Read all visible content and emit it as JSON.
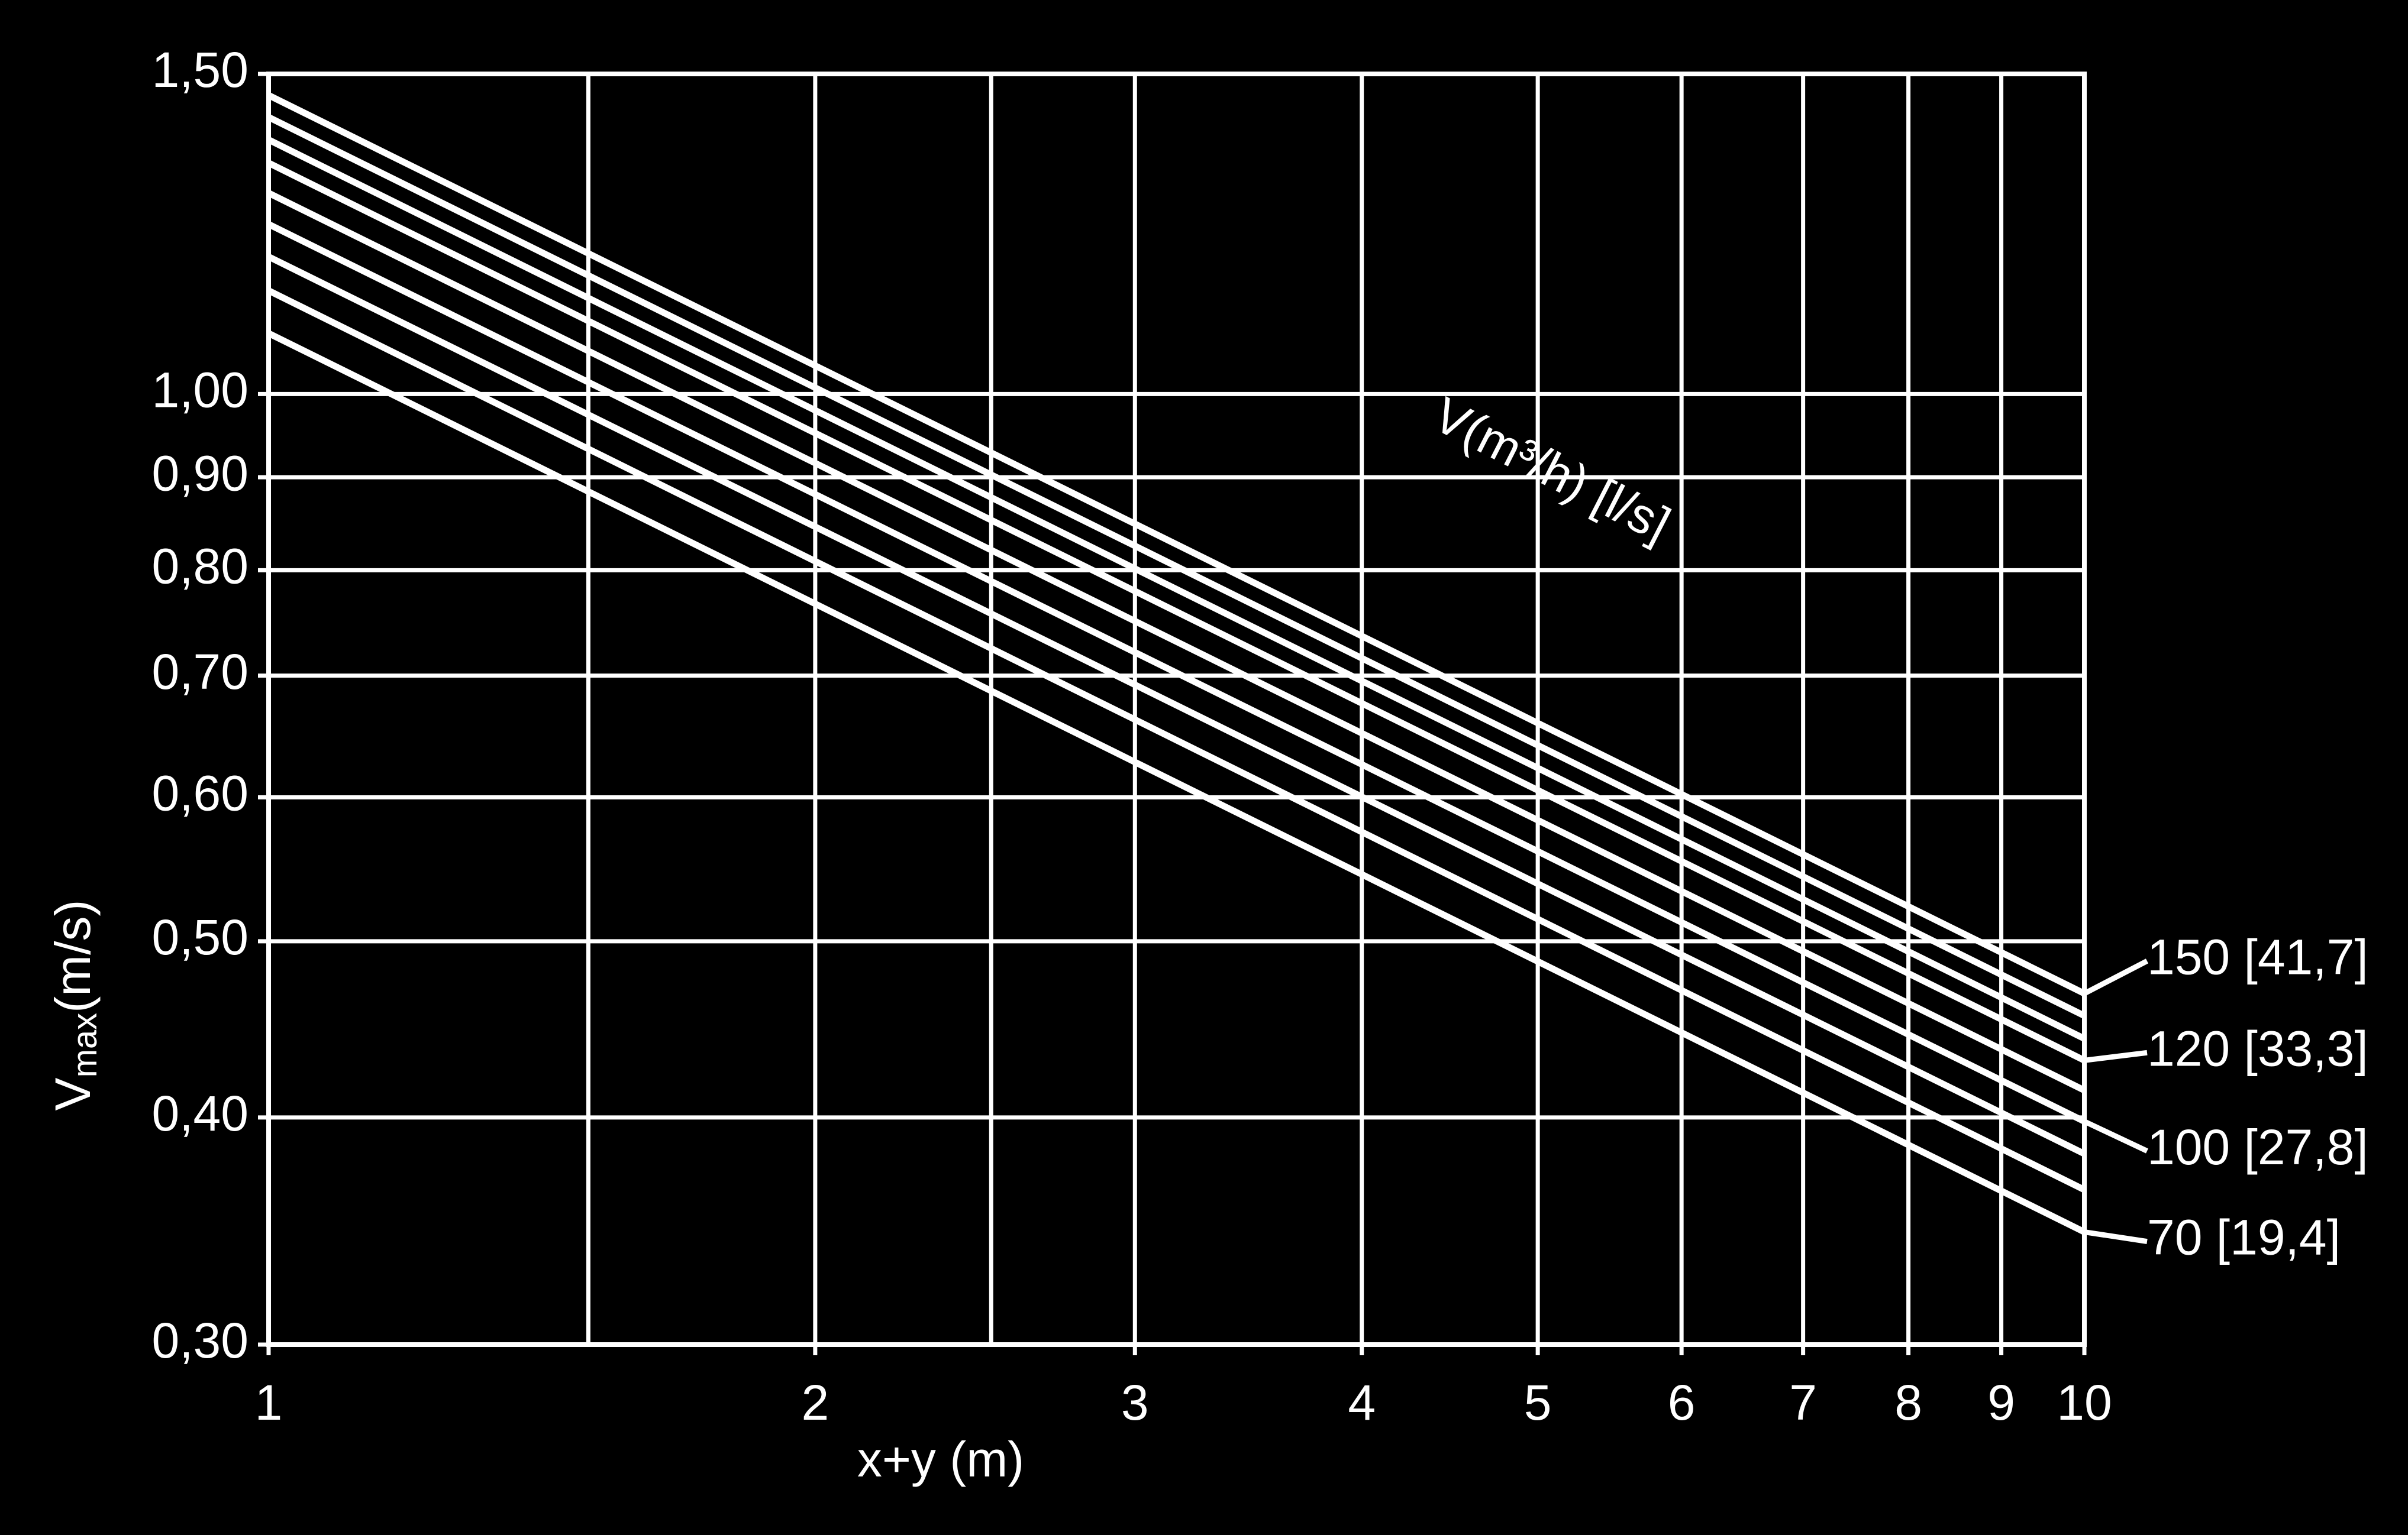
{
  "chart_data": {
    "type": "line",
    "log_x": true,
    "log_y": true,
    "grid": true,
    "color": "#ffffff",
    "xlabel": "x+y (m)",
    "ylabel": [
      "V",
      "max",
      "(m/s)"
    ],
    "annotation": "V(m³/h) [l/s]",
    "x": [
      1,
      10
    ],
    "xlim": [
      1,
      10
    ],
    "xticks": [
      1,
      2,
      3,
      4,
      5,
      6,
      7,
      8,
      9,
      10
    ],
    "xminor_grid": [
      1.5,
      2.5
    ],
    "ylim": [
      0.3,
      1.5
    ],
    "yticks": [
      {
        "value": 0.3,
        "label": "0,30"
      },
      {
        "value": 0.4,
        "label": "0,40"
      },
      {
        "value": 0.5,
        "label": "0,50"
      },
      {
        "value": 0.6,
        "label": "0,60"
      },
      {
        "value": 0.7,
        "label": "0,70"
      },
      {
        "value": 0.8,
        "label": "0,80"
      },
      {
        "value": 0.9,
        "label": "0,90"
      },
      {
        "value": 1.0,
        "label": "1,00"
      },
      {
        "value": 1.5,
        "label": "1,50"
      }
    ],
    "series": [
      {
        "name": "70 [19,4]",
        "values": [
          1.08,
          0.346
        ]
      },
      {
        "values": [
          1.14,
          0.365
        ]
      },
      {
        "values": [
          1.19,
          0.382
        ]
      },
      {
        "name": "100 [27,8]",
        "values": [
          1.24,
          0.398
        ]
      },
      {
        "values": [
          1.29,
          0.414
        ]
      },
      {
        "name": "120 [33,3]",
        "values": [
          1.34,
          0.43
        ]
      },
      {
        "values": [
          1.38,
          0.442
        ]
      },
      {
        "values": [
          1.42,
          0.455
        ]
      },
      {
        "name": "150 [41,7]",
        "values": [
          1.46,
          0.468
        ]
      }
    ]
  }
}
